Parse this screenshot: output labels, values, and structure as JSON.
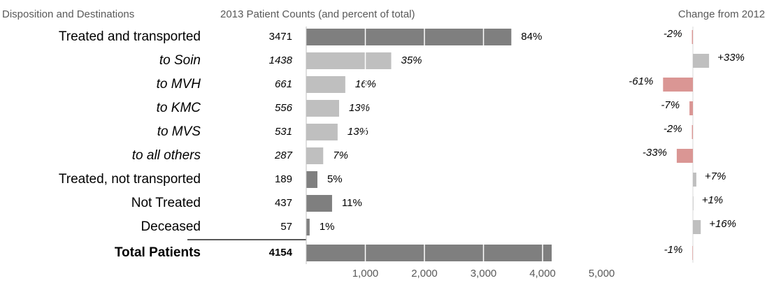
{
  "chart_data": {
    "type": "bar",
    "column_titles": [
      "Disposition and Destinations",
      "2013 Patient Counts (and percent of total)",
      "Change from 2012"
    ],
    "categories": [
      "Treated and transported",
      "to Soin",
      "to MVH",
      "to KMC",
      "to MVS",
      "to all others",
      "Treated, not transported",
      "Not Treated",
      "Deceased",
      "Total Patients"
    ],
    "row_styles": [
      "normal",
      "italic",
      "italic",
      "italic",
      "italic",
      "italic",
      "normal",
      "normal",
      "normal",
      "bold"
    ],
    "colors": [
      "#7f7f7f",
      "#bfbfbf",
      "#bfbfbf",
      "#bfbfbf",
      "#bfbfbf",
      "#bfbfbf",
      "#7f7f7f",
      "#7f7f7f",
      "#7f7f7f",
      "#7f7f7f"
    ],
    "values": [
      3471,
      1438,
      661,
      556,
      531,
      287,
      189,
      437,
      57,
      4154
    ],
    "percents": [
      84,
      35,
      16,
      13,
      13,
      7,
      5,
      11,
      1,
      null
    ],
    "percent_labels": [
      "84%",
      "35%",
      "16%",
      "13%",
      "13%",
      "7%",
      "5%",
      "11%",
      "1%",
      null
    ],
    "changes": [
      -2,
      33,
      -61,
      -7,
      -2,
      -33,
      7,
      1,
      16,
      -1
    ],
    "change_labels": [
      "-2%",
      "+33%",
      "-61%",
      "-7%",
      "-2%",
      "-33%",
      "+7%",
      "+1%",
      "+16%",
      "-1%"
    ],
    "change_colors": {
      "negative": "#da9694",
      "positive": "#bfbfbf"
    },
    "xlim": [
      0,
      5000
    ],
    "xticks": [
      {
        "value": 1000,
        "label": "1,000"
      },
      {
        "value": 2000,
        "label": "2,000"
      },
      {
        "value": 3000,
        "label": "3,000"
      },
      {
        "value": 4000,
        "label": "4,000"
      },
      {
        "value": 5000,
        "label": "5,000"
      }
    ],
    "grid": true
  }
}
